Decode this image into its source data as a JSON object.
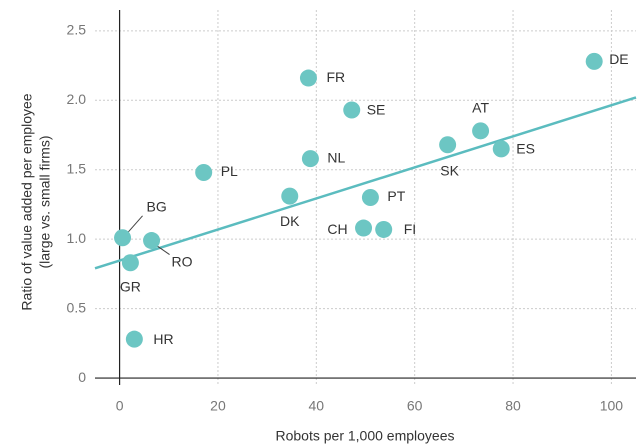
{
  "chart_data": {
    "type": "scatter",
    "xlabel": "Robots per 1,000 employees",
    "ylabel": [
      "Ratio of value added per employee",
      "(large vs. small firms)"
    ],
    "series": [
      {
        "color": "#6cc6c3",
        "labels": [
          "DE",
          "AT",
          "ES",
          "SK",
          "FR",
          "SE",
          "NL",
          "PL",
          "DK",
          "PT",
          "CH",
          "FI",
          "BG",
          "RO",
          "GR",
          "HR"
        ],
        "x": [
          96.5,
          73.4,
          77.6,
          66.7,
          38.4,
          47.2,
          38.8,
          17.1,
          34.6,
          51.0,
          49.6,
          53.7,
          0.6,
          6.5,
          2.2,
          3.0
        ],
        "values": [
          2.28,
          1.78,
          1.65,
          1.68,
          2.16,
          1.93,
          1.58,
          1.48,
          1.31,
          1.3,
          1.08,
          1.07,
          1.01,
          0.99,
          0.83,
          0.28
        ]
      }
    ],
    "trendline": {
      "color": "#5bbcbf",
      "x": [
        -5,
        105
      ],
      "values": [
        0.79,
        2.02
      ]
    },
    "xlim": [
      -5,
      105
    ],
    "ylim": [
      -0.05,
      2.65
    ],
    "xticks": [
      0,
      20,
      40,
      60,
      80,
      100
    ],
    "yticks": [
      0,
      0.5,
      {
        "value": 1,
        "label": "1.0"
      },
      1.5,
      {
        "value": 2,
        "label": "2.0"
      },
      2.5
    ],
    "grid": true
  }
}
